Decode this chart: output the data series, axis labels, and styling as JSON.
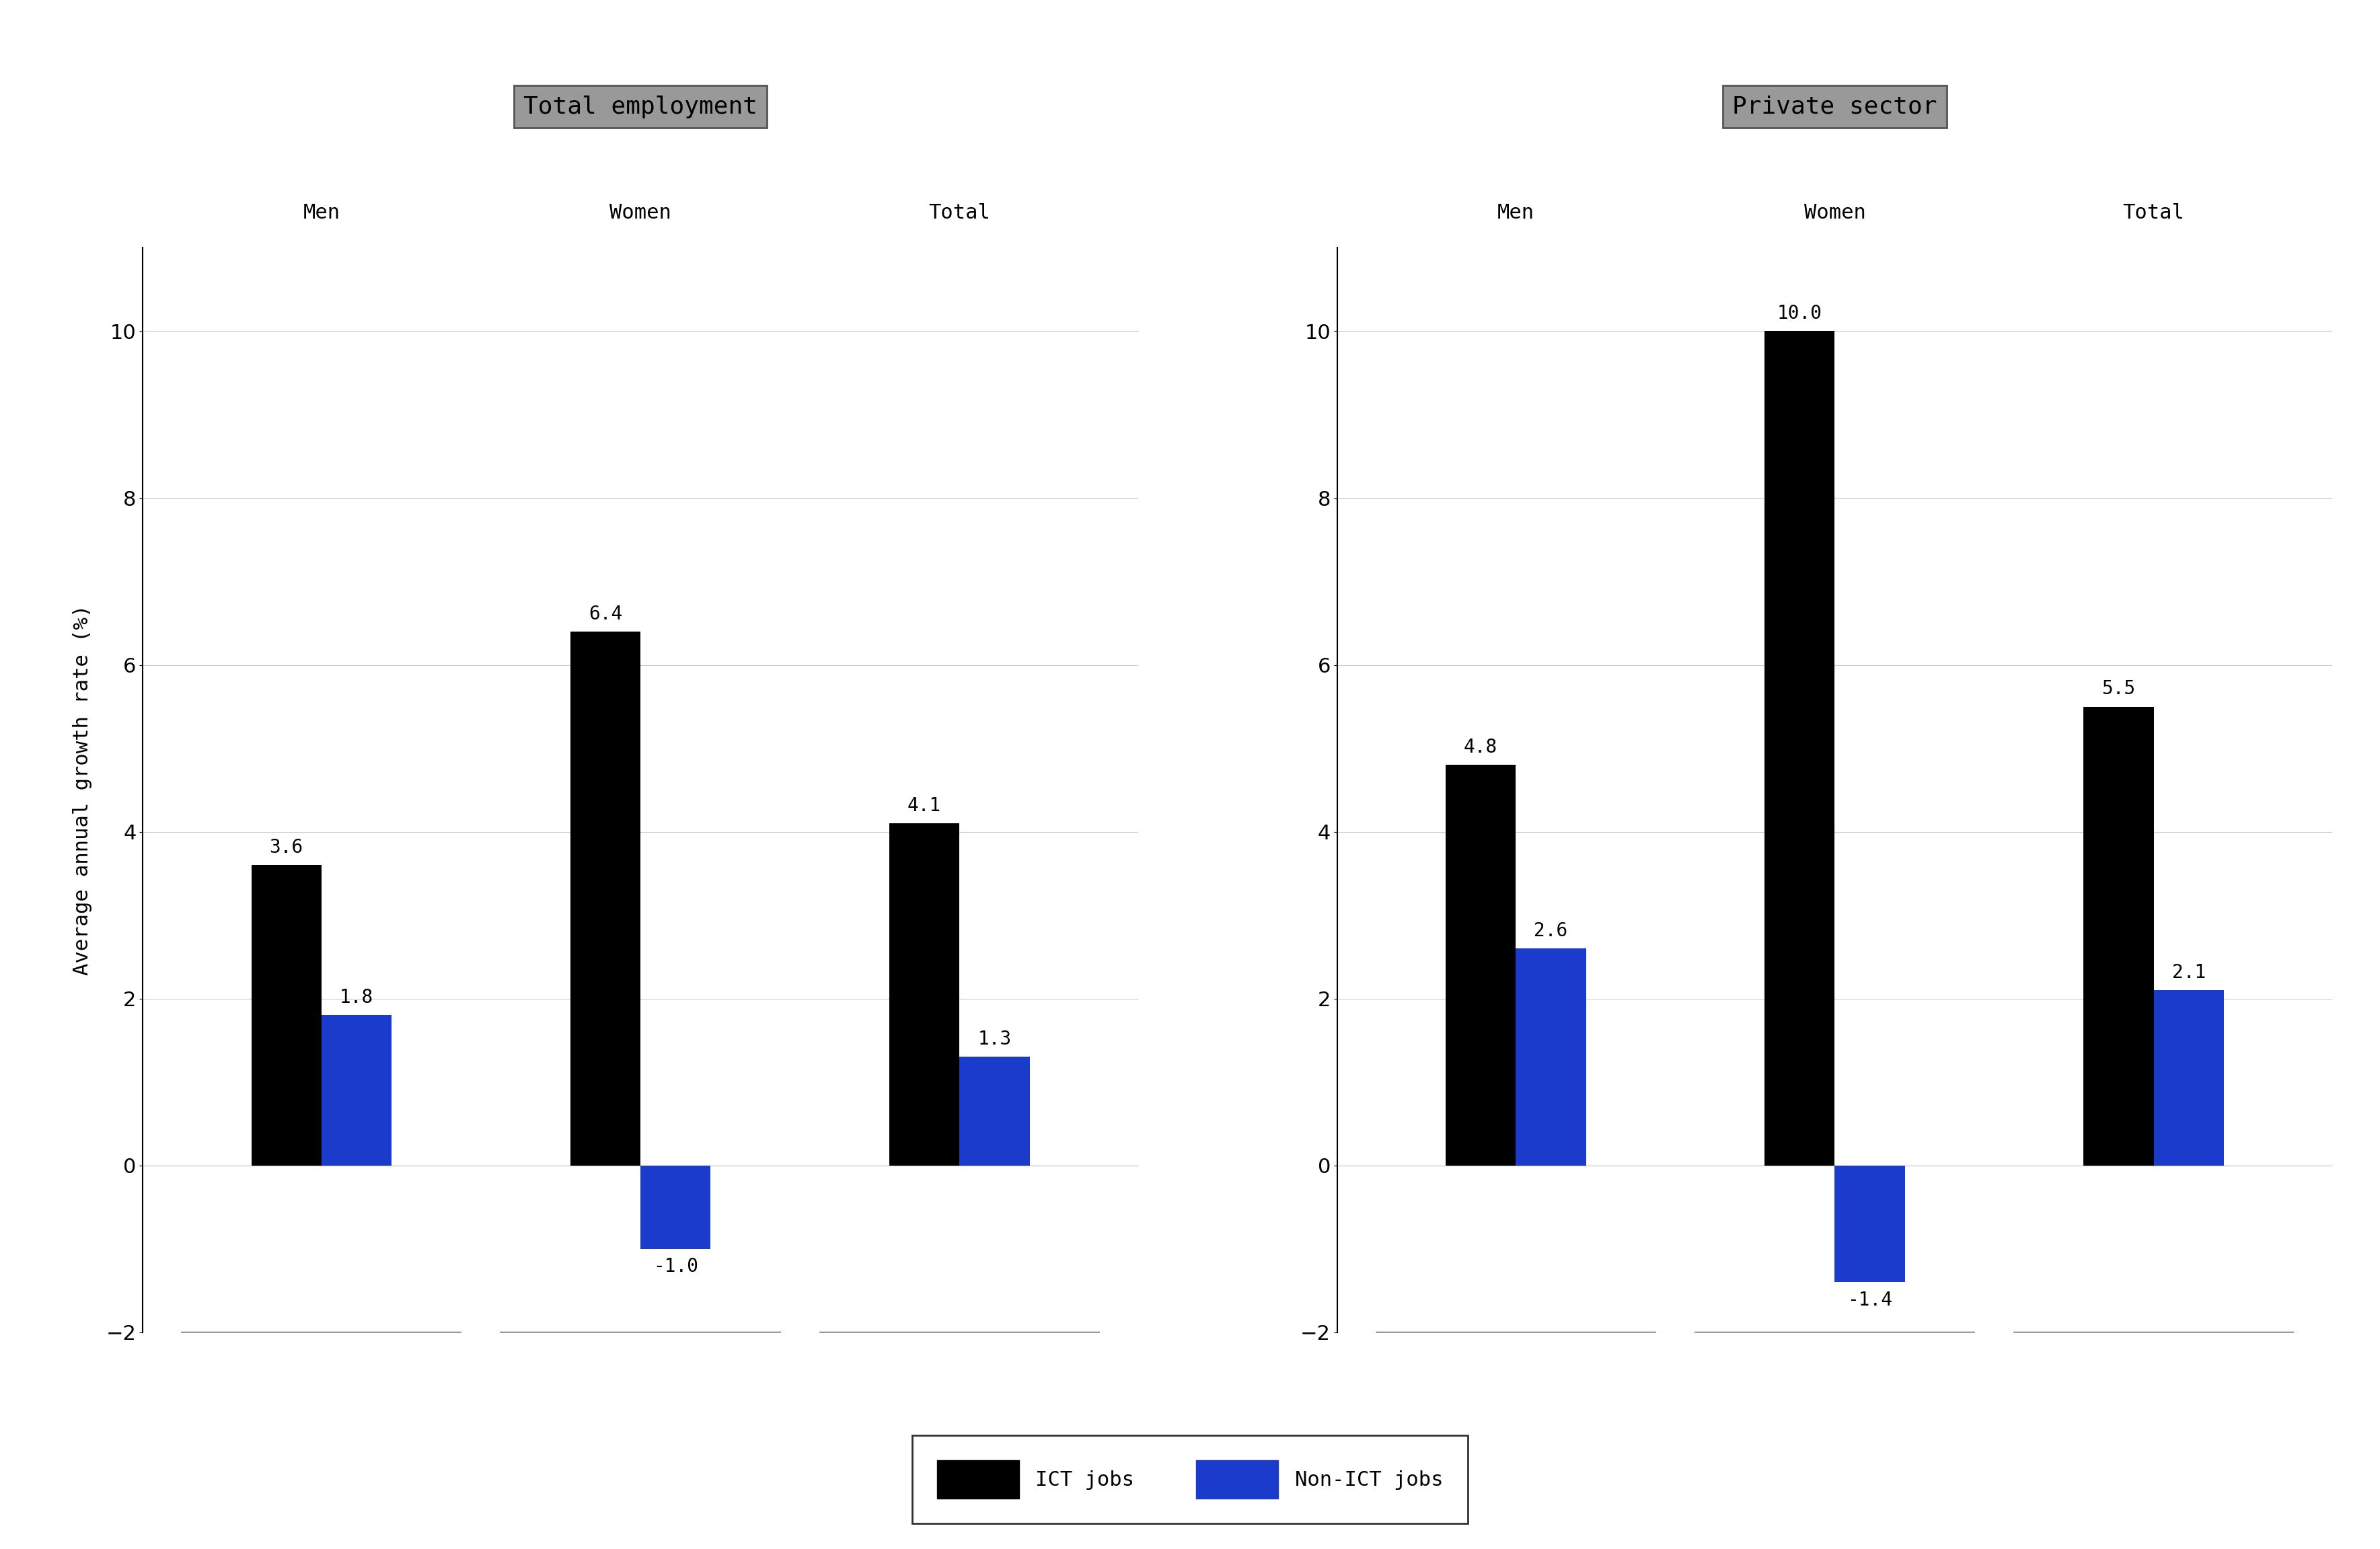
{
  "left_panel": {
    "title": "Total employment",
    "groups": [
      "Men",
      "Women",
      "Total"
    ],
    "ict_values": [
      3.6,
      6.4,
      4.1
    ],
    "non_ict_values": [
      1.8,
      -1.0,
      1.3
    ]
  },
  "right_panel": {
    "title": "Private sector",
    "groups": [
      "Men",
      "Women",
      "Total"
    ],
    "ict_values": [
      4.8,
      10.0,
      5.5
    ],
    "non_ict_values": [
      2.6,
      -1.4,
      2.1
    ]
  },
  "ylabel": "Average annual growth rate (%)",
  "ylim": [
    -2,
    11
  ],
  "yticks": [
    -2,
    0,
    2,
    4,
    6,
    8,
    10
  ],
  "ict_color": "#000000",
  "non_ict_color": "#1a3bcc",
  "bar_width": 0.55,
  "title_box_color": "#999999",
  "title_fontsize": 26,
  "tick_fontsize": 22,
  "group_label_fontsize": 22,
  "ylabel_fontsize": 22,
  "annotation_fontsize": 20,
  "legend_fontsize": 22,
  "background_color": "#ffffff",
  "font_family": "monospace"
}
